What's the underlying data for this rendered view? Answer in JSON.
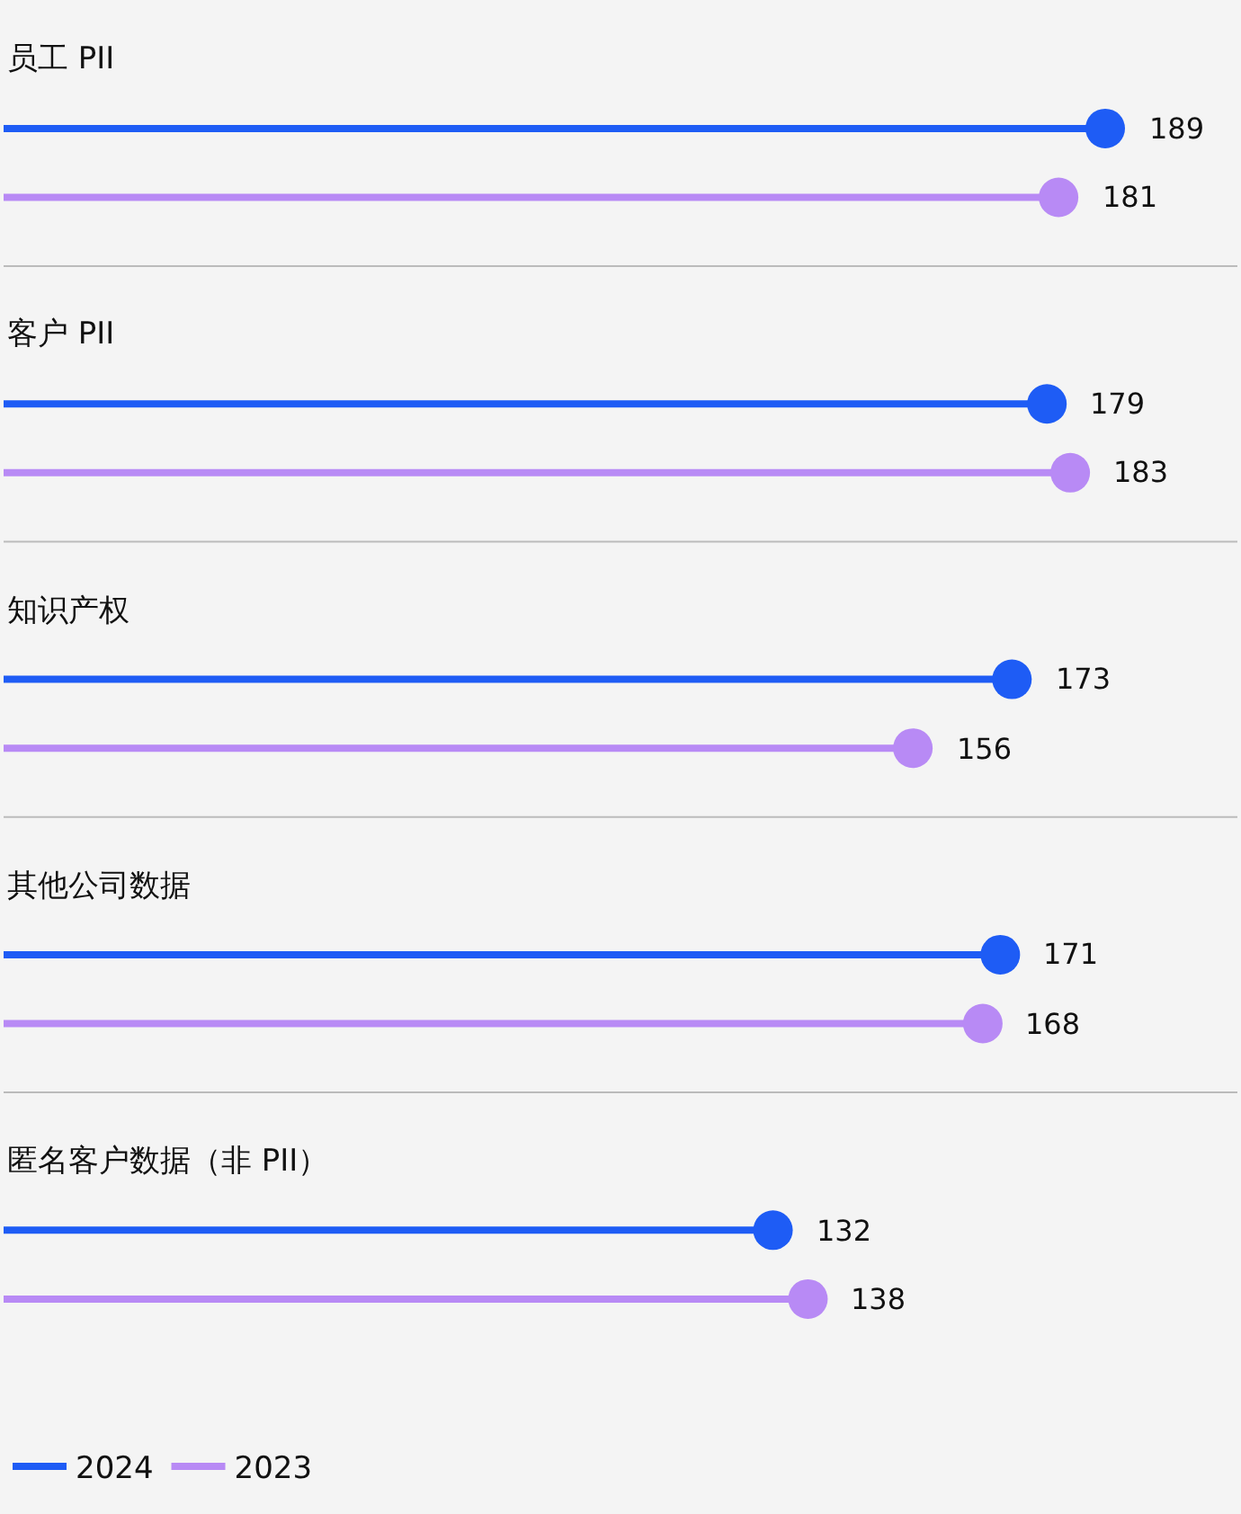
{
  "chart_data": {
    "type": "lollipop",
    "orientation": "horizontal",
    "categories": [
      "员工 PII",
      "客户 PII",
      "知识产权",
      "其他公司数据",
      "匿名客户数据（非 PII）"
    ],
    "series": [
      {
        "name": "2024",
        "color": "#1e5cf5",
        "values": [
          189,
          179,
          173,
          171,
          132
        ]
      },
      {
        "name": "2023",
        "color": "#b88af5",
        "values": [
          181,
          183,
          156,
          168,
          138
        ]
      }
    ],
    "data_labels": true,
    "marker": "circle",
    "grid": false,
    "legend": "bottom left",
    "tick_labels": false
  }
}
